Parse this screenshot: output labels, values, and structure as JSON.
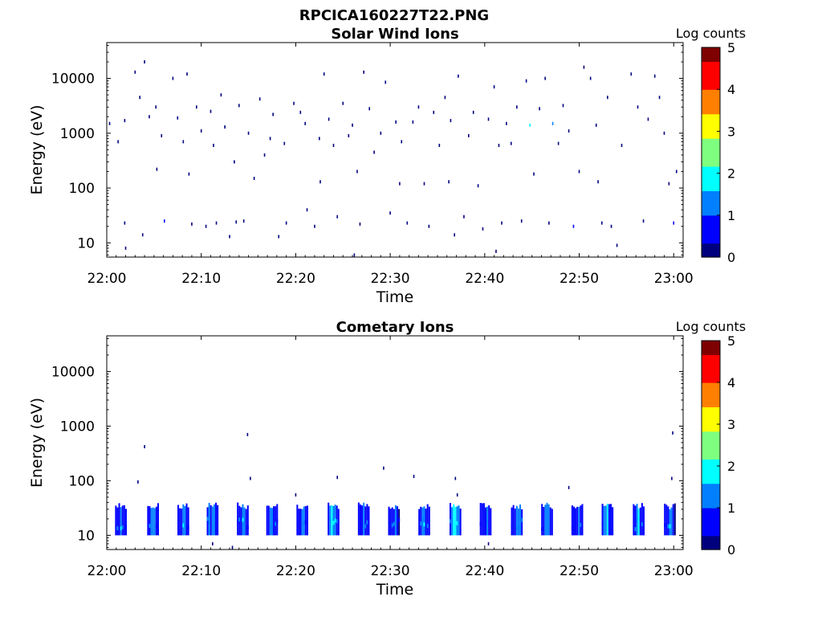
{
  "figure": {
    "title": "RPCICA160227T22.PNG"
  },
  "colormap": [
    "#00007f",
    "#0000ff",
    "#007fff",
    "#00ffff",
    "#7fff7f",
    "#ffff00",
    "#ff7f00",
    "#ff0000",
    "#7f0000"
  ],
  "chart_data": [
    {
      "type": "heatmap",
      "title": "Solar Wind Ions",
      "xlabel": "Time",
      "ylabel": "Energy (eV)",
      "x_ticks": [
        "22:00",
        "22:10",
        "22:20",
        "22:30",
        "22:40",
        "22:50",
        "23:00"
      ],
      "x_range_minutes": [
        0,
        61
      ],
      "y_scale": "log",
      "y_ticks": [
        "10",
        "100",
        "1000",
        "10000"
      ],
      "y_range": [
        5.5,
        45000
      ],
      "colorbar": {
        "label": "Log counts",
        "ticks": [
          "0",
          "1",
          "2",
          "3",
          "4",
          "5"
        ],
        "range": [
          0,
          5
        ]
      },
      "points": [
        [
          0.3,
          1500,
          0.3
        ],
        [
          1.2,
          700,
          0.2
        ],
        [
          1.9,
          1700,
          0.2
        ],
        [
          1.9,
          23,
          0.3
        ],
        [
          2.0,
          8,
          0.2
        ],
        [
          3.0,
          13000,
          0.2
        ],
        [
          3.5,
          4500,
          0.3
        ],
        [
          4.0,
          20000,
          0.2
        ],
        [
          3.8,
          14,
          0.2
        ],
        [
          4.5,
          2000,
          0.2
        ],
        [
          5.2,
          3000,
          0.3
        ],
        [
          5.8,
          900,
          0.2
        ],
        [
          6.1,
          25,
          0.4
        ],
        [
          7.0,
          10000,
          0.3
        ],
        [
          7.5,
          1900,
          0.2
        ],
        [
          8.1,
          700,
          0.2
        ],
        [
          8.5,
          12000,
          0.3
        ],
        [
          9.0,
          22,
          0.2
        ],
        [
          9.5,
          3000,
          0.3
        ],
        [
          10.0,
          1100,
          0.2
        ],
        [
          10.5,
          20,
          0.3
        ],
        [
          11.0,
          2500,
          0.2
        ],
        [
          11.3,
          600,
          0.3
        ],
        [
          11.6,
          23,
          0.3
        ],
        [
          12.1,
          5000,
          0.2
        ],
        [
          12.5,
          1300,
          0.3
        ],
        [
          13.0,
          13,
          0.2
        ],
        [
          13.5,
          300,
          0.2
        ],
        [
          14.0,
          3200,
          0.2
        ],
        [
          14.5,
          25,
          0.3
        ],
        [
          15.0,
          1000,
          0.2
        ],
        [
          15.6,
          150,
          0.2
        ],
        [
          16.2,
          4200,
          0.3
        ],
        [
          16.7,
          400,
          0.2
        ],
        [
          17.3,
          800,
          0.2
        ],
        [
          17.6,
          2200,
          0.2
        ],
        [
          18.2,
          13,
          0.3
        ],
        [
          18.8,
          650,
          0.2
        ],
        [
          19.0,
          23,
          0.2
        ],
        [
          19.8,
          3500,
          0.3
        ],
        [
          20.5,
          2400,
          0.2
        ],
        [
          21.0,
          1500,
          0.2
        ],
        [
          21.2,
          40,
          0.3
        ],
        [
          22.0,
          20,
          0.3
        ],
        [
          22.5,
          800,
          0.2
        ],
        [
          23.0,
          12000,
          0.3
        ],
        [
          23.5,
          1800,
          0.2
        ],
        [
          24.0,
          600,
          0.2
        ],
        [
          24.4,
          30,
          0.3
        ],
        [
          25.0,
          3500,
          0.2
        ],
        [
          25.6,
          900,
          0.3
        ],
        [
          26.0,
          1400,
          0.2
        ],
        [
          26.5,
          200,
          0.2
        ],
        [
          26.8,
          22,
          0.2
        ],
        [
          27.2,
          13000,
          0.2
        ],
        [
          27.8,
          2800,
          0.3
        ],
        [
          28.3,
          450,
          0.2
        ],
        [
          29.0,
          1000,
          0.2
        ],
        [
          29.5,
          8500,
          0.2
        ],
        [
          30.0,
          35,
          0.3
        ],
        [
          30.6,
          1600,
          0.2
        ],
        [
          31.2,
          700,
          0.2
        ],
        [
          31.8,
          23,
          0.3
        ],
        [
          32.4,
          1600,
          0.2
        ],
        [
          33.0,
          3000,
          0.2
        ],
        [
          33.6,
          120,
          0.3
        ],
        [
          34.1,
          20,
          0.2
        ],
        [
          34.6,
          2400,
          0.3
        ],
        [
          35.2,
          600,
          0.2
        ],
        [
          35.8,
          4500,
          0.2
        ],
        [
          36.4,
          1700,
          0.2
        ],
        [
          36.8,
          14,
          0.3
        ],
        [
          37.2,
          11000,
          0.3
        ],
        [
          37.8,
          30,
          0.2
        ],
        [
          38.3,
          900,
          0.2
        ],
        [
          38.8,
          2400,
          0.2
        ],
        [
          39.3,
          110,
          0.2
        ],
        [
          39.8,
          18,
          0.3
        ],
        [
          40.4,
          1800,
          0.2
        ],
        [
          41.0,
          7000,
          0.2
        ],
        [
          41.5,
          600,
          0.2
        ],
        [
          41.8,
          23,
          0.3
        ],
        [
          42.3,
          1500,
          0.2
        ],
        [
          42.8,
          650,
          0.3
        ],
        [
          43.4,
          3000,
          0.2
        ],
        [
          43.9,
          25,
          0.2
        ],
        [
          44.4,
          9000,
          0.3
        ],
        [
          44.8,
          1400,
          1.7
        ],
        [
          45.2,
          180,
          0.2
        ],
        [
          45.8,
          2800,
          0.2
        ],
        [
          46.4,
          10000,
          0.3
        ],
        [
          46.8,
          23,
          0.3
        ],
        [
          47.2,
          1500,
          1.3
        ],
        [
          47.8,
          650,
          0.2
        ],
        [
          48.3,
          3200,
          0.2
        ],
        [
          48.9,
          1100,
          0.2
        ],
        [
          49.4,
          20,
          0.4
        ],
        [
          50.0,
          200,
          0.2
        ],
        [
          50.5,
          16000,
          0.2
        ],
        [
          51.2,
          10000,
          0.2
        ],
        [
          51.8,
          1400,
          0.2
        ],
        [
          52.4,
          23,
          0.3
        ],
        [
          53.0,
          4500,
          0.2
        ],
        [
          53.4,
          20,
          0.3
        ],
        [
          54.0,
          9,
          0.2
        ],
        [
          54.5,
          600,
          0.2
        ],
        [
          55.5,
          12000,
          0.2
        ],
        [
          56.2,
          3000,
          0.2
        ],
        [
          56.8,
          25,
          0.3
        ],
        [
          57.3,
          1800,
          0.2
        ],
        [
          58.0,
          11000,
          0.2
        ],
        [
          58.5,
          4500,
          0.3
        ],
        [
          59.0,
          1000,
          0.2
        ],
        [
          59.5,
          120,
          0.2
        ],
        [
          60.0,
          23,
          0.4
        ],
        [
          60.3,
          200,
          0.2
        ],
        [
          5.3,
          220,
          0.2
        ],
        [
          8.7,
          180,
          0.3
        ],
        [
          13.7,
          24,
          0.3
        ],
        [
          22.6,
          130,
          0.2
        ],
        [
          26.2,
          6,
          0.2
        ],
        [
          31.0,
          120,
          0.2
        ],
        [
          36.2,
          130,
          0.3
        ],
        [
          41.2,
          7,
          0.3
        ],
        [
          52.0,
          130,
          0.2
        ]
      ]
    },
    {
      "type": "heatmap",
      "title": "Cometary Ions",
      "xlabel": "Time",
      "ylabel": "Energy (eV)",
      "x_ticks": [
        "22:00",
        "22:10",
        "22:20",
        "22:30",
        "22:40",
        "22:50",
        "23:00"
      ],
      "x_range_minutes": [
        0,
        61
      ],
      "y_scale": "log",
      "y_ticks": [
        "10",
        "100",
        "1000",
        "10000"
      ],
      "y_range": [
        5.5,
        45000
      ],
      "colorbar": {
        "label": "Log counts",
        "ticks": [
          "0",
          "1",
          "2",
          "3",
          "4",
          "5"
        ],
        "range": [
          0,
          5
        ]
      },
      "bursts": [
        [
          1.5,
          1.2
        ],
        [
          4.9,
          1.3
        ],
        [
          8.1,
          1.5
        ],
        [
          11.2,
          1.7
        ],
        [
          14.4,
          1.5
        ],
        [
          17.5,
          1.8
        ],
        [
          20.7,
          1.4
        ],
        [
          24.0,
          2.0
        ],
        [
          27.2,
          1.5
        ],
        [
          30.4,
          1.3
        ],
        [
          33.6,
          1.4
        ],
        [
          36.9,
          1.9
        ],
        [
          40.1,
          1.3
        ],
        [
          43.4,
          1.6
        ],
        [
          46.6,
          1.7
        ],
        [
          49.8,
          1.4
        ],
        [
          53.0,
          1.7
        ],
        [
          56.3,
          1.6
        ],
        [
          59.6,
          1.4
        ]
      ],
      "points": [
        [
          3.3,
          95,
          0.3
        ],
        [
          4.0,
          420,
          0.2
        ],
        [
          14.9,
          700,
          0.2
        ],
        [
          15.2,
          110,
          0.3
        ],
        [
          20.0,
          55,
          0.3
        ],
        [
          24.4,
          115,
          0.2
        ],
        [
          29.3,
          170,
          0.2
        ],
        [
          32.5,
          120,
          0.2
        ],
        [
          36.9,
          110,
          0.2
        ],
        [
          37.1,
          55,
          0.2
        ],
        [
          48.9,
          75,
          0.2
        ],
        [
          59.9,
          750,
          0.2
        ],
        [
          59.8,
          110,
          0.3
        ],
        [
          13.3,
          6,
          0.2
        ],
        [
          11.2,
          7,
          0.3
        ],
        [
          40.4,
          7,
          0.3
        ]
      ]
    }
  ]
}
